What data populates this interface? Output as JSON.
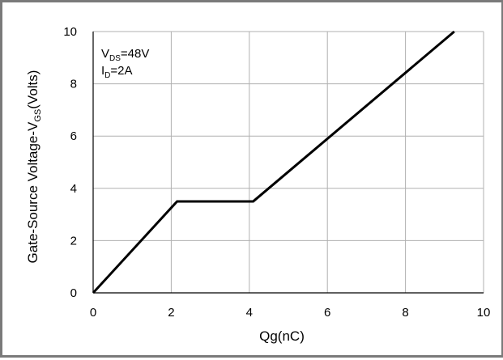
{
  "chart_data": {
    "type": "line",
    "xlabel": "Qg(nC)",
    "ylabel_parts": {
      "a": "Gate-Source Voltage-V",
      "sub": "GS",
      "b": "(Volts)"
    },
    "xlim": [
      0,
      10
    ],
    "ylim": [
      0,
      10
    ],
    "x_ticks": [
      "0",
      "2",
      "4",
      "6",
      "8",
      "10"
    ],
    "y_ticks": [
      "0",
      "2",
      "4",
      "6",
      "8",
      "10"
    ],
    "grid": true,
    "annotations": {
      "vds": {
        "main": "V",
        "sub": "DS",
        "rest": "=48V"
      },
      "id": {
        "main": "I",
        "sub": "D",
        "rest": "=2A"
      }
    },
    "series": [
      {
        "x": [
          0,
          2.15,
          4.1,
          9.25
        ],
        "y": [
          0,
          3.5,
          3.5,
          10
        ]
      }
    ],
    "colors": {
      "line": "#000000",
      "grid": "#b0b0b0",
      "axis": "#000000",
      "frame": "#7a7a7a"
    }
  }
}
